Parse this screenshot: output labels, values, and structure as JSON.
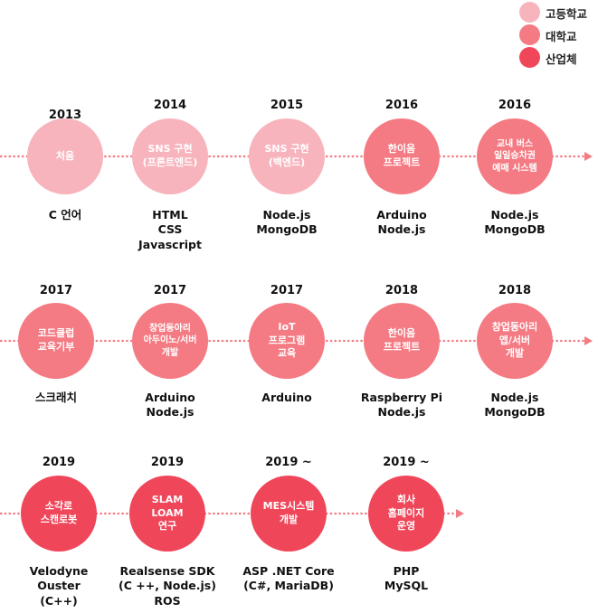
{
  "legend": [
    {
      "label": "고등학교",
      "color": "#f8b4bd"
    },
    {
      "label": "대학교",
      "color": "#f47b83"
    },
    {
      "label": "산업체",
      "color": "#f0465a"
    }
  ],
  "colors": {
    "line": "#f17c84",
    "text": "#111111"
  },
  "rows": [
    {
      "nodes": [
        {
          "year": "2013",
          "title": "처음",
          "tech": "C 언어",
          "category": "high_school"
        },
        {
          "year": "2014",
          "title": "SNS 구현\n(프론트엔드)",
          "tech": "HTML\nCSS\nJavascript",
          "category": "high_school"
        },
        {
          "year": "2015",
          "title": "SNS 구현\n(백엔드)",
          "tech": "Node.js\nMongoDB",
          "category": "high_school"
        },
        {
          "year": "2016",
          "title": "한이음\n프로젝트",
          "tech": "Arduino\nNode.js",
          "category": "university"
        },
        {
          "year": "2016",
          "title": "교내 버스\n일일승차권\n예매 시스템",
          "tech": "Node.js\nMongoDB",
          "category": "university"
        }
      ]
    },
    {
      "nodes": [
        {
          "year": "2017",
          "title": "코드클럽\n교육기부",
          "tech": "스크래치",
          "category": "university"
        },
        {
          "year": "2017",
          "title": "창업동아리\n아두이노/서버\n개발",
          "tech": "Arduino\nNode.js",
          "category": "university"
        },
        {
          "year": "2017",
          "title": "IoT\n프로그램\n교육",
          "tech": "Arduino",
          "category": "university"
        },
        {
          "year": "2018",
          "title": "한이음\n프로젝트",
          "tech": "Raspberry Pi\nNode.js",
          "category": "university"
        },
        {
          "year": "2018",
          "title": "창업동아리\n앱/서버\n개발",
          "tech": "Node.js\nMongoDB",
          "category": "university"
        }
      ]
    },
    {
      "nodes": [
        {
          "year": "2019",
          "title": "소각로\n스캔로봇",
          "tech": "Velodyne\nOuster\n(C++)",
          "category": "industry"
        },
        {
          "year": "2019",
          "title": "SLAM\nLOAM\n연구",
          "tech": "Realsense SDK\n(C ++, Node.js)\nROS",
          "category": "industry"
        },
        {
          "year": "2019 ~",
          "title": "MES시스템\n개발",
          "tech": "ASP .NET Core\n(C#, MariaDB)",
          "category": "industry"
        },
        {
          "year": "2019 ~",
          "title": "회사\n홈페이지\n운영",
          "tech": "PHP\nMySQL",
          "category": "industry"
        }
      ]
    }
  ]
}
